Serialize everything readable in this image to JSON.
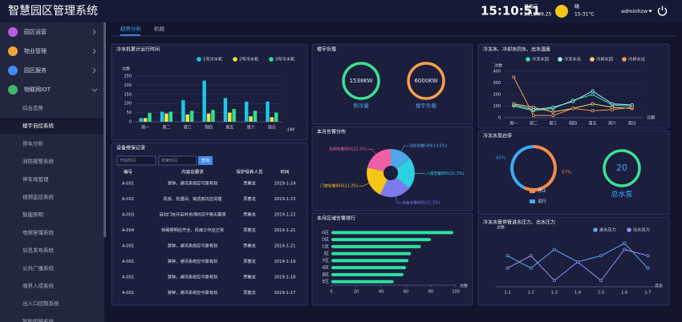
{
  "header": {
    "title": "智慧园区管理系统",
    "time": "15:10:51",
    "weekday": "星期三",
    "date": "2019.09.25",
    "weather": "晴",
    "temperature": "15-31°C",
    "user": "adminhzw"
  },
  "sidebar": {
    "menu": [
      {
        "label": "园区运营",
        "icon_color": "#b85de0"
      },
      {
        "label": "物业管理",
        "icon_color": "#f0a53a"
      },
      {
        "label": "园区服务",
        "icon_color": "#3e8ef5"
      },
      {
        "label": "物联网IOT",
        "icon_color": "#3fb86a",
        "expanded": true
      }
    ],
    "submenu": [
      {
        "label": "综合态势"
      },
      {
        "label": "楼宇自控系统",
        "active": true
      },
      {
        "label": "停车分析"
      },
      {
        "label": "消防报警系统"
      },
      {
        "label": "停车场管理"
      },
      {
        "label": "视频监控系统"
      },
      {
        "label": "智能照明"
      },
      {
        "label": "电梯管理系统"
      },
      {
        "label": "信息发布系统"
      },
      {
        "label": "公共广播系统"
      },
      {
        "label": "周界入侵系统"
      },
      {
        "label": "出入口控制系统"
      },
      {
        "label": "智能照明系统"
      }
    ]
  },
  "tabs": [
    {
      "label": "趋势分析",
      "active": true
    },
    {
      "label": "机组"
    }
  ],
  "chiller_runtime": {
    "type": "bar",
    "title": "冷水机累计运行时间",
    "y_label": "次数",
    "x_label": "小时",
    "categories": [
      "周一",
      "周二",
      "周三",
      "周四",
      "周五",
      "周六",
      "周日"
    ],
    "series": [
      {
        "name": "1号冷水机",
        "color": "#1ec8e6",
        "values": [
          20,
          55,
          118,
          225,
          130,
          110,
          110
        ]
      },
      {
        "name": "2号冷水机",
        "color": "#f2e34a",
        "values": [
          20,
          45,
          40,
          45,
          50,
          30,
          25
        ]
      },
      {
        "name": "3号冷水机",
        "color": "#2ee08f",
        "values": [
          48,
          55,
          60,
          65,
          70,
          60,
          50
        ]
      }
    ],
    "ylim": [
      0,
      250
    ],
    "yticks": [
      0,
      50,
      100,
      150,
      200,
      250
    ],
    "grid": true
  },
  "maintenance": {
    "title": "设备维保记录",
    "start_placeholder": "开始时间",
    "end_placeholder": "结束时间",
    "button": "查询",
    "columns": [
      "编号",
      "内容及要求",
      "保护保养人员",
      "时间"
    ],
    "rows": [
      [
        "A-001",
        "禁钟，通讯系统应可靠有效",
        "贾春龙",
        "2019-1-24"
      ],
      [
        "A-002",
        "机房、轮遇间、销顶底坑应清理",
        "贾春龙",
        "2019-1-23"
      ],
      [
        "A-003",
        "自动门在开启时关闭时应平稳无震荡",
        "贾春龙",
        "2019-1-22"
      ],
      [
        "A-004",
        "轿厢照明应齐全、风扇工作应正常",
        "贾春龙",
        "2019-1-21"
      ],
      [
        "A-001",
        "禁钟，通讯系统应可靠有效",
        "贾春龙",
        "2019-1-21"
      ],
      [
        "A-001",
        "禁钟，通讯系统应可靠有效",
        "贾春龙",
        "2019-1-19"
      ],
      [
        "A-001",
        "禁钟，通讯系统应可靠有效",
        "贾春龙",
        "2019-1-18"
      ],
      [
        "A-001",
        "禁钟，通讯系统应可靠有效",
        "贾春龙",
        "2019-1-17"
      ]
    ]
  },
  "building_load": {
    "title": "楼宇负载",
    "gauges": [
      {
        "value": "1538KW",
        "label": "制冷量",
        "color": "#3ee08f"
      },
      {
        "value": "6000KW",
        "label": "楼宇负载",
        "color": "#f5a04a"
      }
    ]
  },
  "alarm_distribution": {
    "type": "pie",
    "title": "本月告警分布",
    "values": [
      589,
      860,
      860,
      860,
      860
    ],
    "value_labels": [
      "消防告警589(14.6%)",
      "入侵告警860(21.3%)",
      "设备告警860(21.3%)",
      "门禁告警860(21.3%)",
      "视频告警860(21.3%)"
    ],
    "colors": [
      "#4ea5e8",
      "#2ed0e0",
      "#7b7bf0",
      "#f5c518",
      "#ef5fa7"
    ]
  },
  "area_alarm_ranking": {
    "type": "hbar",
    "title": "本月区域告警排行",
    "x_label": "次数",
    "categories": [
      "G区",
      "D区",
      "C区",
      "I区",
      "F区",
      "A区",
      "B区",
      "E区"
    ],
    "values": [
      98,
      80,
      72,
      64,
      62,
      60,
      58,
      50
    ],
    "color": "#2ee0a0",
    "xlim": [
      0,
      100
    ],
    "xticks": [
      0,
      20,
      40,
      60,
      80,
      100
    ]
  },
  "water_temperature": {
    "type": "line",
    "title": "冷冻水、冷却水回水、出水温度",
    "y_label": "次数",
    "x_label": "日期",
    "categories": [
      "周一",
      "周二",
      "周三",
      "周四",
      "周五",
      "周六",
      "周日"
    ],
    "series": [
      {
        "name": "冷冻水回",
        "color": "#3ee0b0",
        "values": [
          100,
          60,
          80,
          150,
          200,
          110,
          100
        ]
      },
      {
        "name": "冷冻水出",
        "color": "#9ff0f8",
        "values": [
          110,
          70,
          90,
          140,
          230,
          120,
          110
        ]
      },
      {
        "name": "冷却水回",
        "color": "#f5d76e",
        "values": [
          120,
          90,
          50,
          80,
          120,
          90,
          80
        ]
      },
      {
        "name": "冷却水出",
        "color": "#f59a4a",
        "values": [
          350,
          20,
          20,
          80,
          60,
          70,
          90
        ]
      }
    ],
    "ylim": [
      0,
      400
    ],
    "yticks": [
      0,
      100,
      200,
      300,
      400
    ],
    "grid": true
  },
  "pump_status": {
    "type": "donut",
    "title": "冷冻水泵启停",
    "categories": [
      "停止",
      "运行"
    ],
    "values": [
      57,
      43
    ],
    "value_labels": [
      "57%",
      "43%"
    ],
    "colors": [
      "#f58a4a",
      "#3ea8f5"
    ],
    "total": 20,
    "total_label": "总水泵"
  },
  "pressure": {
    "type": "line",
    "title": "冷冻水管供管进水压力、出水压力",
    "y_label": "次数",
    "x_label": "月份",
    "categories": [
      "1-1",
      "1-2",
      "1-3",
      "1-4",
      "1-5",
      "1-6",
      "1-7"
    ],
    "series": [
      {
        "name": "进水压力",
        "color": "#5aa8f0",
        "values": [
          250,
          150,
          300,
          200,
          250,
          350,
          150
        ]
      },
      {
        "name": "出水压力",
        "color": "#9c8cf5",
        "values": [
          150,
          250,
          50,
          200,
          50,
          300,
          250
        ]
      }
    ],
    "ylim": [
      0,
      400
    ]
  }
}
